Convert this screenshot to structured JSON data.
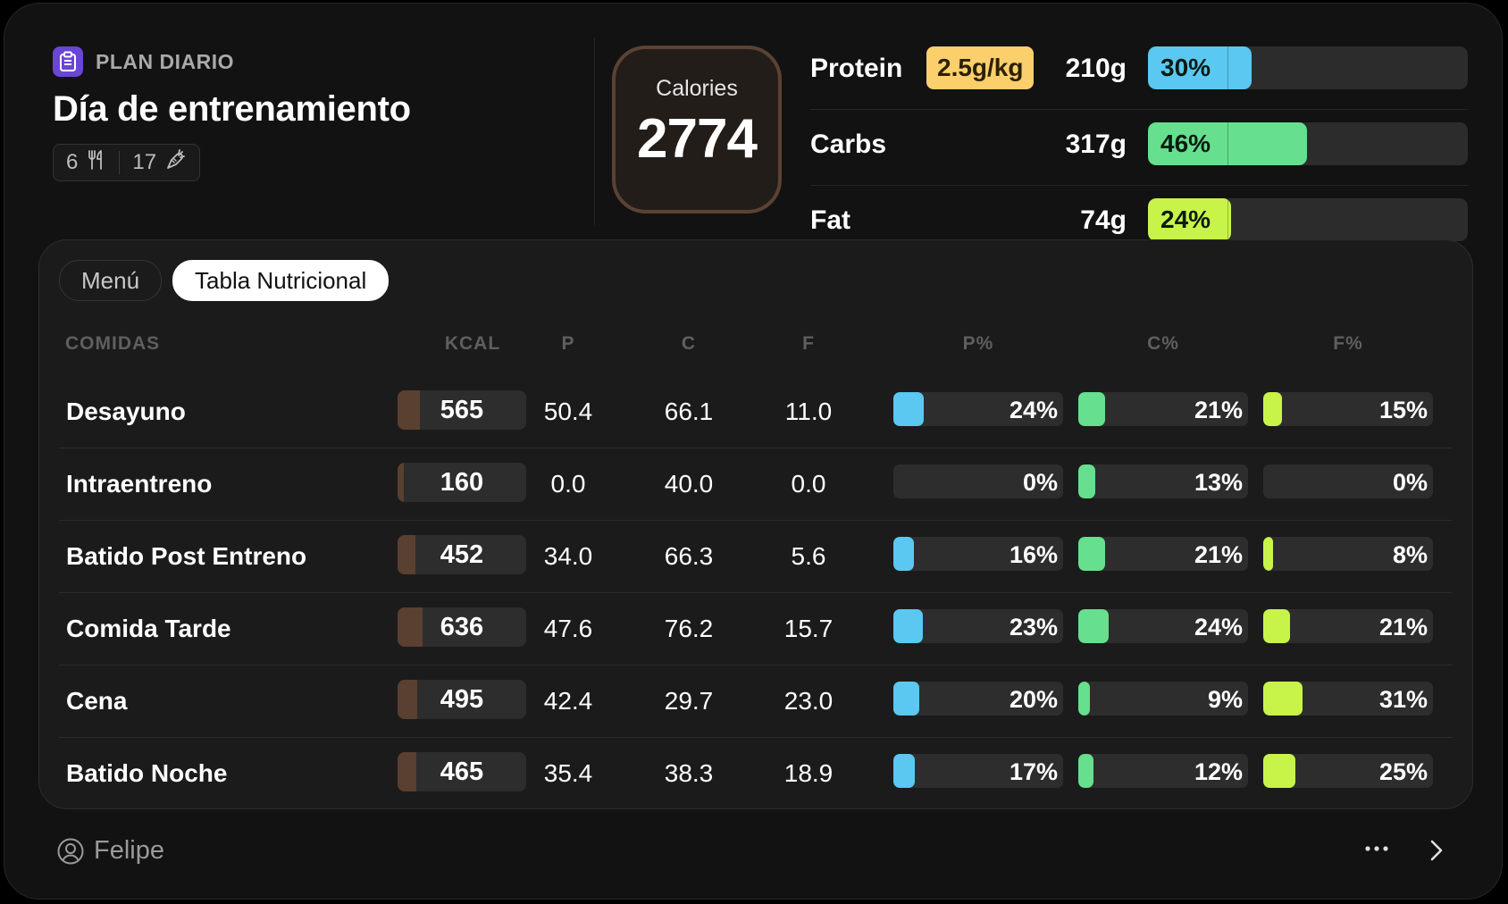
{
  "header": {
    "section_label": "PLAN DIARIO",
    "title": "Día de entrenamiento",
    "meals_count": "6",
    "ingredients_count": "17"
  },
  "calories": {
    "label": "Calories",
    "value": "2774"
  },
  "macros": [
    {
      "name": "Protein",
      "badge": "2.5g/kg",
      "grams": "210g",
      "percent_label": "30%",
      "percent": 30,
      "color": "#5ac8f0"
    },
    {
      "name": "Carbs",
      "badge": "",
      "grams": "317g",
      "percent_label": "46%",
      "percent": 46,
      "color": "#66df8e"
    },
    {
      "name": "Fat",
      "badge": "",
      "grams": "74g",
      "percent_label": "24%",
      "percent": 24,
      "color": "#c8f44a"
    }
  ],
  "tabs": [
    {
      "label": "Menú",
      "active": false
    },
    {
      "label": "Tabla Nutricional",
      "active": true
    }
  ],
  "table": {
    "headers": {
      "meals": "COMIDAS",
      "kcal": "KCAL",
      "p": "P",
      "c": "C",
      "f": "F",
      "p_pct": "P%",
      "c_pct": "C%",
      "f_pct": "F%"
    },
    "rows": [
      {
        "meal": "Desayuno",
        "kcal": "565",
        "p": "50.4",
        "c": "66.1",
        "f": "11.0",
        "p_pct": "24%",
        "c_pct": "21%",
        "f_pct": "15%"
      },
      {
        "meal": "Intraentreno",
        "kcal": "160",
        "p": "0.0",
        "c": "40.0",
        "f": "0.0",
        "p_pct": "0%",
        "c_pct": "13%",
        "f_pct": "0%"
      },
      {
        "meal": "Batido Post Entreno",
        "kcal": "452",
        "p": "34.0",
        "c": "66.3",
        "f": "5.6",
        "p_pct": "16%",
        "c_pct": "21%",
        "f_pct": "8%"
      },
      {
        "meal": "Comida Tarde",
        "kcal": "636",
        "p": "47.6",
        "c": "76.2",
        "f": "15.7",
        "p_pct": "23%",
        "c_pct": "24%",
        "f_pct": "21%"
      },
      {
        "meal": "Cena",
        "kcal": "495",
        "p": "42.4",
        "c": "29.7",
        "f": "23.0",
        "p_pct": "20%",
        "c_pct": "9%",
        "f_pct": "31%"
      },
      {
        "meal": "Batido Noche",
        "kcal": "465",
        "p": "35.4",
        "c": "38.3",
        "f": "18.9",
        "p_pct": "17%",
        "c_pct": "12%",
        "f_pct": "25%"
      }
    ]
  },
  "footer": {
    "user_name": "Felipe"
  },
  "colors": {
    "protein": "#5ac8f0",
    "carbs": "#66df8e",
    "fat": "#c8f44a",
    "kcal_bar": "#5a4030"
  }
}
